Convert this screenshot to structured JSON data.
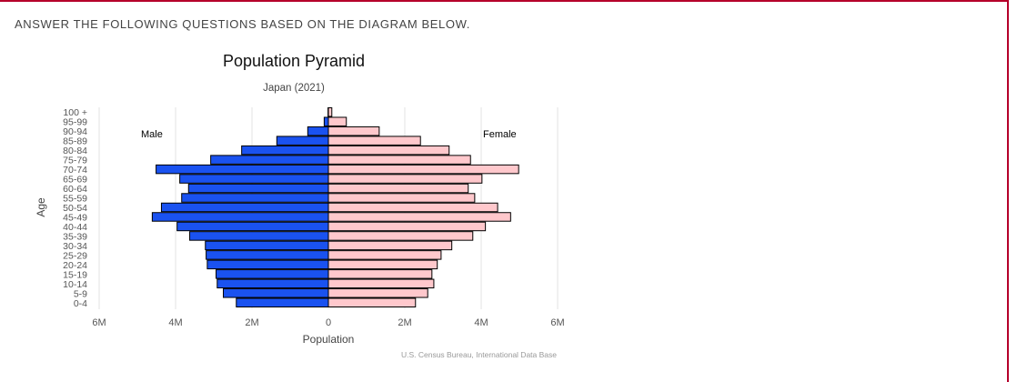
{
  "instruction": "ANSWER THE FOLLOWING QUESTIONS BASED ON THE DIAGRAM BELOW.",
  "chart_data": {
    "type": "bar",
    "orientation": "horizontal-pyramid",
    "title": "Population Pyramid",
    "subtitle": "Japan (2021)",
    "xlabel": "Population",
    "ylabel": "Age",
    "source": "U.S. Census Bureau, International Data Base",
    "xlim": [
      -6000000,
      6000000
    ],
    "xticks": [
      "6M",
      "4M",
      "2M",
      "0",
      "2M",
      "4M",
      "6M"
    ],
    "grid": true,
    "categories": [
      "100 +",
      "95-99",
      "90-94",
      "85-89",
      "80-84",
      "75-79",
      "70-74",
      "65-69",
      "60-64",
      "55-59",
      "50-54",
      "45-49",
      "40-44",
      "35-39",
      "30-34",
      "25-29",
      "20-24",
      "15-19",
      "10-14",
      "5-9",
      "0-4"
    ],
    "series": [
      {
        "name": "Male",
        "color": "#1a52f0",
        "values": [
          0.01,
          0.11,
          0.54,
          1.35,
          2.27,
          3.08,
          4.51,
          3.89,
          3.66,
          3.84,
          4.37,
          4.61,
          3.96,
          3.63,
          3.22,
          3.2,
          3.17,
          2.94,
          2.91,
          2.75,
          2.41
        ],
        "unit": "M"
      },
      {
        "name": "Female",
        "color": "#ffc8cc",
        "values": [
          0.09,
          0.47,
          1.33,
          2.41,
          3.16,
          3.72,
          4.98,
          4.02,
          3.66,
          3.83,
          4.43,
          4.77,
          4.11,
          3.78,
          3.23,
          2.95,
          2.85,
          2.71,
          2.76,
          2.6,
          2.28
        ],
        "unit": "M"
      }
    ]
  }
}
